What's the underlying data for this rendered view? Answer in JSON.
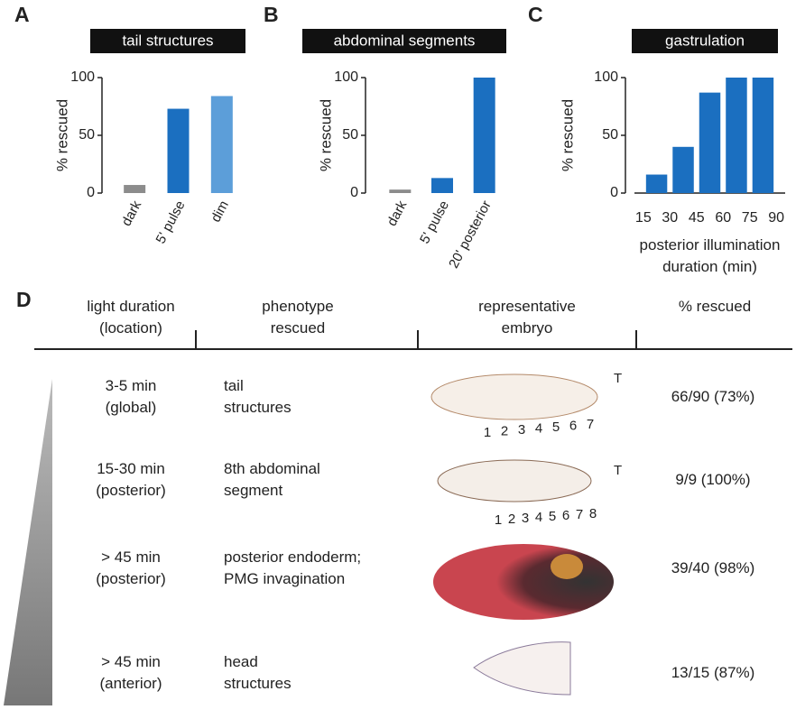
{
  "chart_data": [
    {
      "type": "bar",
      "panel": "A",
      "title": "tail structures",
      "ylabel": "% rescued",
      "categories": [
        "dark",
        "5' pulse",
        "dim"
      ],
      "values": [
        7,
        73,
        84
      ],
      "colors": [
        "#8c8c8c",
        "#1b6fc0",
        "#5c9ed9"
      ],
      "ylim": [
        0,
        100
      ],
      "yticks": [
        0,
        50,
        100
      ]
    },
    {
      "type": "bar",
      "panel": "B",
      "title": "abdominal segments",
      "ylabel": "% rescued",
      "categories": [
        "dark",
        "5' pulse",
        "20' posterior"
      ],
      "values": [
        3,
        13,
        100
      ],
      "colors": [
        "#8c8c8c",
        "#1b6fc0",
        "#1b6fc0"
      ],
      "ylim": [
        0,
        100
      ],
      "yticks": [
        0,
        50,
        100
      ]
    },
    {
      "type": "histogram",
      "panel": "C",
      "title": "gastrulation",
      "ylabel": "% rescued",
      "xlabel": "posterior illumination duration (min)",
      "bins": [
        15,
        30,
        45,
        60,
        75,
        90
      ],
      "values": [
        16,
        40,
        87,
        100,
        100
      ],
      "color": "#1b6fc0",
      "xlim": [
        10,
        95
      ],
      "xticks": [
        15,
        30,
        45,
        60,
        75,
        90
      ],
      "ylim": [
        0,
        100
      ],
      "yticks": [
        0,
        50,
        100
      ]
    }
  ],
  "panel_d": {
    "label": "D",
    "headers": [
      "light duration\n(location)",
      "phenotype\nrescued",
      "representative\nembryo",
      "% rescued"
    ],
    "rows": [
      {
        "duration": "3-5 min\n(global)",
        "phenotype": "tail\nstructures",
        "embryo_labels": [
          "T",
          "1",
          "2",
          "3",
          "4",
          "5",
          "6",
          "7"
        ],
        "rescued": "66/90 (73%)"
      },
      {
        "duration": "15-30 min\n(posterior)",
        "phenotype": "8th abdominal\nsegment",
        "embryo_labels": [
          "T",
          "1",
          "2",
          "3",
          "4",
          "5",
          "6",
          "7",
          "8"
        ],
        "rescued": "9/9 (100%)"
      },
      {
        "duration": "> 45 min\n(posterior)",
        "phenotype": "posterior endoderm;\nPMG invagination",
        "embryo_labels": [],
        "rescued": "39/40 (98%)"
      },
      {
        "duration": "> 45 min\n(anterior)",
        "phenotype": "head\nstructures",
        "embryo_labels": [],
        "rescued": "13/15 (87%)"
      }
    ]
  }
}
